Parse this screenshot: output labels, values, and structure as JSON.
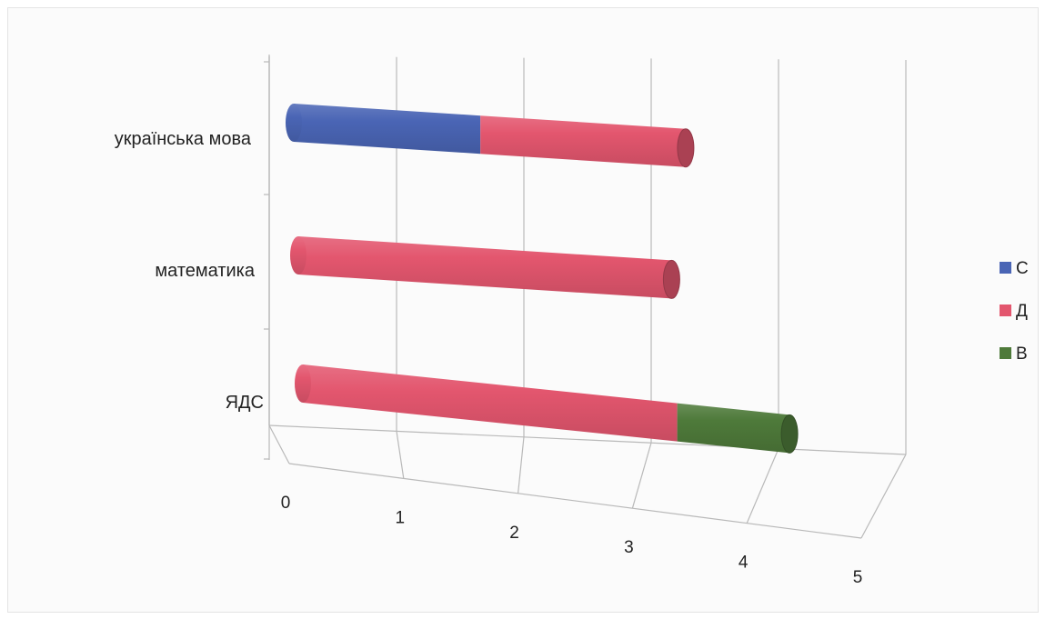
{
  "chart_data": {
    "type": "bar",
    "orientation": "horizontal",
    "stacked": true,
    "style": "3d-cylinder",
    "categories": [
      "ЯДС",
      "математика",
      "українська мова"
    ],
    "series": [
      {
        "name": "С",
        "color": "#4a65b5",
        "values": [
          0,
          0,
          2
        ]
      },
      {
        "name": "Д",
        "color": "#e3566e",
        "values": [
          4,
          4,
          2.2
        ]
      },
      {
        "name": "В",
        "color": "#4e7a3a",
        "values": [
          1.2,
          0,
          0
        ]
      }
    ],
    "x_ticks": [
      "0",
      "1",
      "2",
      "3",
      "4",
      "5"
    ],
    "xlim": [
      0,
      5
    ],
    "xlabel": "",
    "ylabel": "",
    "title": "",
    "legend_position": "right",
    "grid": true
  }
}
